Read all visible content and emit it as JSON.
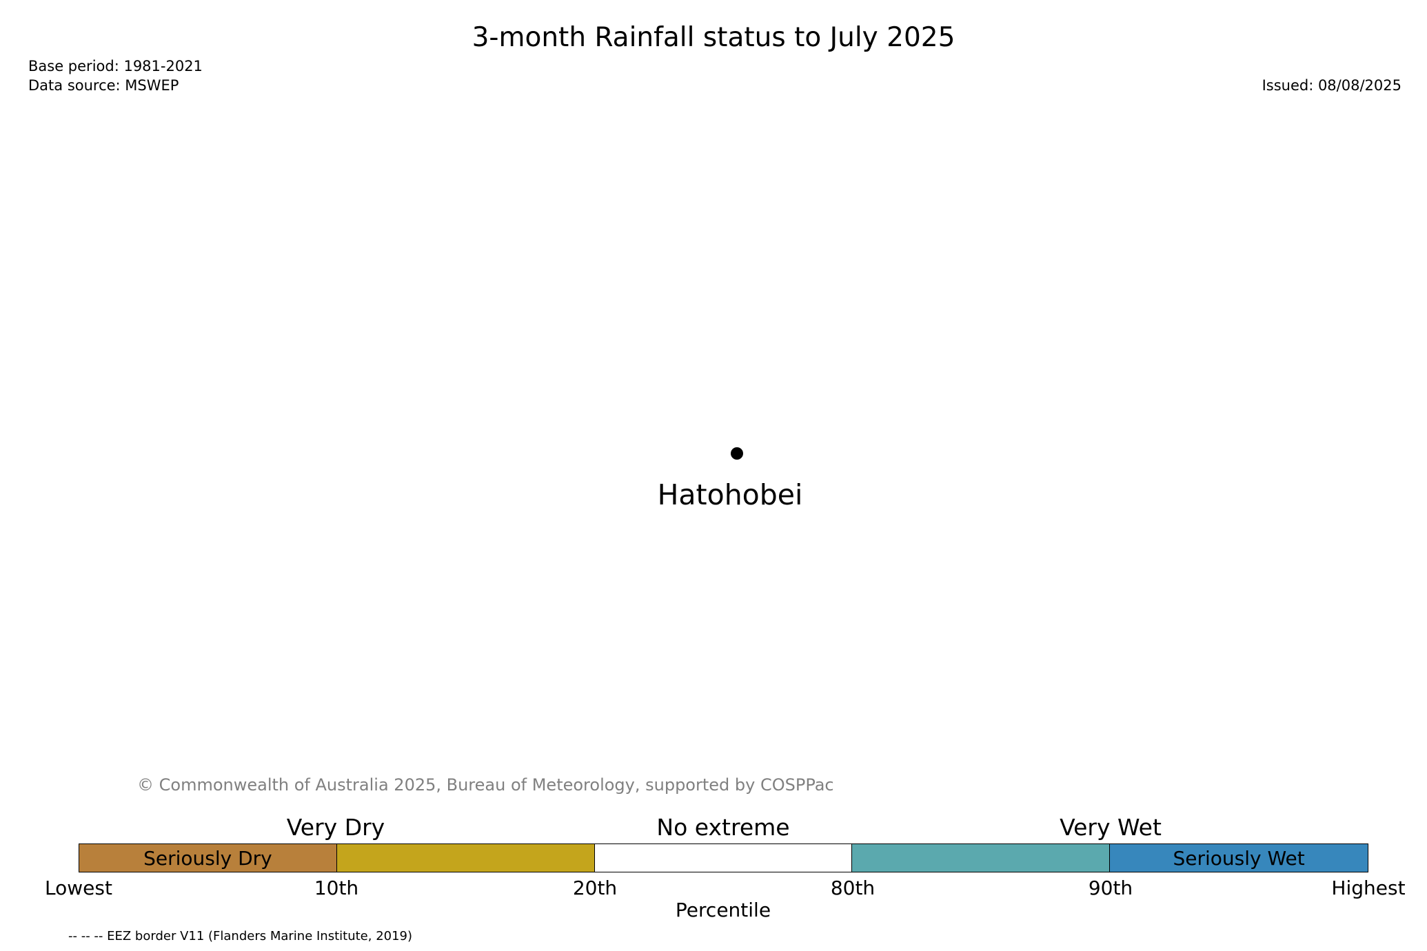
{
  "header": {
    "title": "3-month Rainfall status to July 2025",
    "base_period": "Base period: 1981-2021",
    "data_source": "Data source: MSWEP",
    "issued": "Issued: 08/08/2025"
  },
  "map": {
    "place_name": "Hatohobei"
  },
  "copyright": "© Commonwealth of Australia 2025, Bureau of Meteorology, supported by COSPPac",
  "legend": {
    "segments": [
      {
        "label": "Seriously Dry",
        "color": "#b8803b"
      },
      {
        "label": "",
        "color": "#c4a51c"
      },
      {
        "label": "",
        "color": "#ffffff"
      },
      {
        "label": "",
        "color": "#5ba9ae"
      },
      {
        "label": "Seriously Wet",
        "color": "#3787bc"
      }
    ],
    "group_labels": [
      "Very Dry",
      "No extreme",
      "Very Wet"
    ],
    "ticks": [
      "Lowest",
      "10th",
      "20th",
      "80th",
      "90th",
      "Highest"
    ],
    "xlabel": "Percentile"
  },
  "footnote": "-- -- -- EEZ border V11 (Flanders Marine Institute, 2019)"
}
